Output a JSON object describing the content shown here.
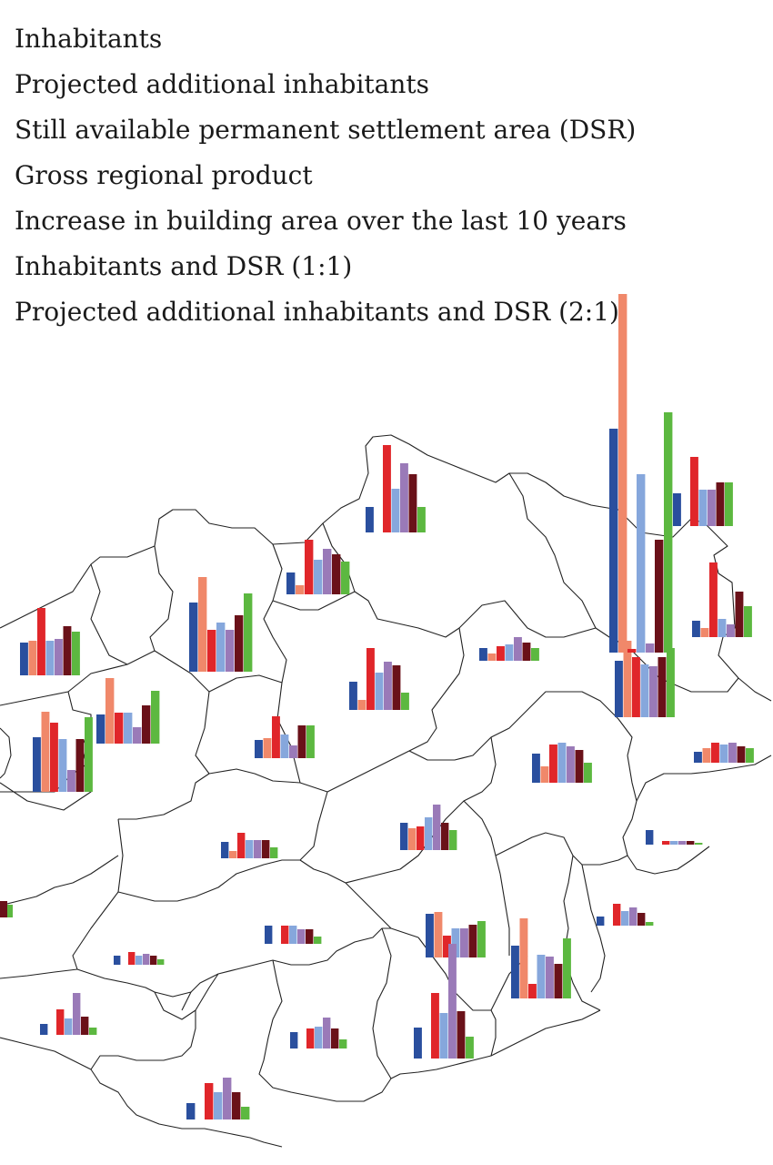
{
  "legend": {
    "items": [
      {
        "label": "Inhabitants",
        "color": "#2a4f9e"
      },
      {
        "label": "Projected additional inhabitants",
        "color": "#f0886a"
      },
      {
        "label": "Still available permanent settlement area (DSR)",
        "color": "#e0262a"
      },
      {
        "label": "Gross regional product",
        "color": "#86a7dc"
      },
      {
        "label": "Increase in building area over the last 10 years",
        "color": "#9a7ab8"
      },
      {
        "label": "Inhabitants and DSR (1:1)",
        "color": "#6a1119"
      },
      {
        "label": "Projected additional inhabitants and DSR (2:1)",
        "color": "#5cb840"
      }
    ]
  },
  "chart_data": {
    "type": "bar",
    "description_note": "",
    "series": [
      "Inhabitants",
      "Projected additional inhabitants",
      "Still available permanent settlement area (DSR)",
      "Gross regional product",
      "Increase in building area over the last 10 years",
      "Inhabitants and DSR (1:1)",
      "Projected additional inhabitants and DSR (2:1)"
    ],
    "regions": [
      {
        "id": "r01",
        "values": [
          28,
          0,
          96,
          48,
          76,
          64,
          28
        ]
      },
      {
        "id": "r02",
        "values": [
          36,
          0,
          76,
          40,
          40,
          48,
          48
        ]
      },
      {
        "id": "r03",
        "values": [
          24,
          10,
          60,
          38,
          50,
          44,
          36
        ]
      },
      {
        "id": "r04",
        "values": [
          76,
          104,
          46,
          54,
          46,
          62,
          86
        ]
      },
      {
        "id": "r05",
        "values": [
          36,
          38,
          74,
          38,
          40,
          54,
          48
        ]
      },
      {
        "id": "r06",
        "values": [
          31,
          11,
          68,
          41,
          53,
          49,
          19
        ]
      },
      {
        "id": "r07",
        "values": [
          14,
          8,
          16,
          18,
          26,
          20,
          14
        ]
      },
      {
        "id": "r08",
        "values": [
          12,
          16,
          22,
          20,
          22,
          18,
          16
        ]
      },
      {
        "id": "r09",
        "values": [
          62,
          84,
          66,
          58,
          56,
          66,
          76
        ]
      },
      {
        "id": "r10",
        "values": [
          246,
          394,
          4,
          196,
          10,
          124,
          264
        ]
      },
      {
        "id": "r11",
        "values": [
          18,
          10,
          82,
          20,
          14,
          50,
          34
        ]
      },
      {
        "id": "r12",
        "values": [
          60,
          88,
          76,
          58,
          24,
          58,
          82
        ]
      },
      {
        "id": "r13",
        "values": [
          32,
          72,
          34,
          34,
          18,
          42,
          58
        ]
      },
      {
        "id": "r14",
        "values": [
          20,
          22,
          46,
          26,
          14,
          36,
          36
        ]
      },
      {
        "id": "r15",
        "values": [
          32,
          18,
          42,
          44,
          40,
          36,
          22
        ]
      },
      {
        "id": "r16",
        "values": [
          30,
          24,
          26,
          36,
          50,
          30,
          22
        ]
      },
      {
        "id": "r17",
        "values": [
          18,
          8,
          28,
          20,
          20,
          20,
          12
        ]
      },
      {
        "id": "r18",
        "values": [
          48,
          50,
          24,
          32,
          32,
          36,
          40
        ]
      },
      {
        "id": "r19",
        "values": [
          10,
          0,
          14,
          10,
          12,
          10,
          6
        ]
      },
      {
        "id": "r20",
        "values": [
          20,
          0,
          20,
          20,
          16,
          16,
          8
        ]
      },
      {
        "id": "r21",
        "values": [
          10,
          0,
          24,
          16,
          20,
          14,
          4
        ]
      },
      {
        "id": "r22",
        "values": [
          16,
          0,
          4,
          4,
          4,
          4,
          2
        ]
      },
      {
        "id": "r23",
        "values": [
          58,
          88,
          16,
          48,
          46,
          38,
          66
        ]
      },
      {
        "id": "r24",
        "values": [
          34,
          0,
          72,
          50,
          126,
          52,
          24
        ]
      },
      {
        "id": "r25",
        "values": [
          12,
          0,
          28,
          18,
          46,
          20,
          8
        ]
      },
      {
        "id": "r26",
        "values": [
          18,
          0,
          22,
          24,
          34,
          22,
          10
        ]
      },
      {
        "id": "r27",
        "values": [
          18,
          0,
          40,
          30,
          46,
          30,
          14
        ]
      },
      {
        "id": "r28",
        "values": [
          24,
          4,
          36,
          36,
          54,
          30,
          18
        ]
      },
      {
        "id": "r29",
        "values": [
          36,
          12,
          16,
          30,
          70,
          28,
          14
        ]
      }
    ]
  }
}
